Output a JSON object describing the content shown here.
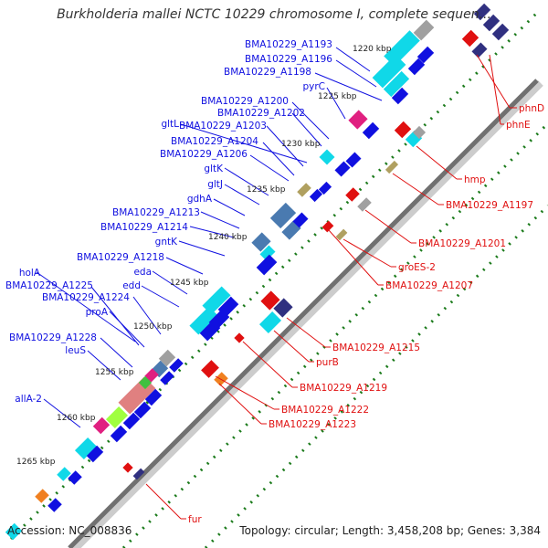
{
  "title": "Burkholderia mallei NCTC 10229 chromosome I, complete sequen...",
  "footer": {
    "accession": "Accession: NC_008836",
    "summary": "Topology: circular; Length: 3,458,208 bp; Genes: 3,384"
  },
  "kbp_ticks": [
    "1220 kbp",
    "1225 kbp",
    "1230 kbp",
    "1235 kbp",
    "1240 kbp",
    "1245 kbp",
    "1250 kbp",
    "1255 kbp",
    "1260 kbp",
    "1265 kbp"
  ],
  "blue_labels": [
    "BMA10229_A1193",
    "BMA10229_A1196",
    "BMA10229_A1198",
    "pyrC",
    "BMA10229_A1200",
    "BMA10229_A1202",
    "gltL",
    "BMA10229_A1203",
    "BMA10229_A1204",
    "BMA10229_A1206",
    "gltK",
    "gltJ",
    "gdhA",
    "BMA10229_A1213",
    "BMA10229_A1214",
    "gntK",
    "BMA10229_A1218",
    "eda",
    "edd",
    "holA",
    "BMA10229_A1225",
    "BMA10229_A1224",
    "proA",
    "BMA10229_A1228",
    "leuS",
    "allA-2"
  ],
  "red_labels": [
    "phnD",
    "phnE",
    "hmp",
    "BMA10229_A1197",
    "BMA10229_A1201",
    "groES-2",
    "BMA10229_A1207",
    "BMA10229_A1215",
    "purB",
    "BMA10229_A1219",
    "BMA10229_A1222",
    "BMA10229_A1223",
    "fur"
  ],
  "colors": {
    "forward": "#1010e0",
    "reverse": "#e01010",
    "cyan": "#10d8e8",
    "steel": "#4a7ab0",
    "navy": "#303080",
    "magenta": "#e02080",
    "tan": "#b0a060",
    "gray": "#a0a0a0",
    "backbone": "#707070",
    "tick": "#1a7a1a"
  }
}
